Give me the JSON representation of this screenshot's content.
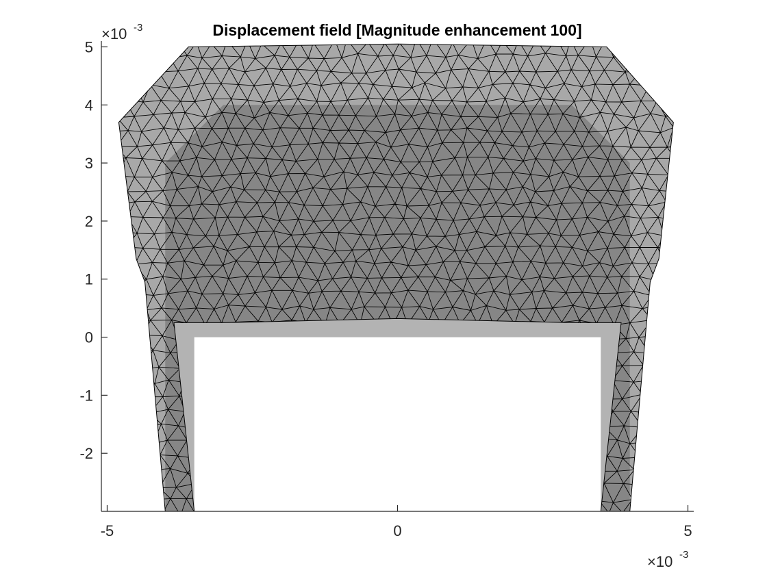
{
  "chart_data": {
    "type": "mesh-displacement",
    "title": "Displacement field [Magnitude enhancement 100]",
    "xlabel": "",
    "ylabel": "",
    "x_exponent": {
      "base": "×10",
      "power": "-3"
    },
    "y_exponent": {
      "base": "×10",
      "power": "-3"
    },
    "xlim": [
      -5.1,
      5.1
    ],
    "ylim": [
      -3.0,
      5.1
    ],
    "xticks": [
      -5,
      0,
      5
    ],
    "xtick_labels": [
      "-5",
      "0",
      "5"
    ],
    "yticks": [
      -2,
      -1,
      0,
      1,
      2,
      3,
      4,
      5
    ],
    "ytick_labels": [
      "-2",
      "-1",
      "0",
      "1",
      "2",
      "3",
      "4",
      "5"
    ],
    "grid": false,
    "colors": {
      "undeformed_fill": "#b3b3b3",
      "deformed_fill": "rgba(96,96,96,0.55)",
      "mesh_edge": "#000000",
      "axis": "#262626"
    },
    "undeformed_shape": {
      "name": "undeformed",
      "points": [
        [
          -4,
          -3
        ],
        [
          -4,
          3
        ],
        [
          -3,
          4
        ],
        [
          3,
          4
        ],
        [
          4,
          3
        ],
        [
          4,
          -3
        ],
        [
          3.5,
          -3
        ],
        [
          3.5,
          0
        ],
        [
          -3.5,
          0
        ],
        [
          -3.5,
          -3
        ]
      ]
    },
    "deformed_shape": {
      "name": "deformed",
      "points": [
        [
          -4.0,
          -3.0
        ],
        [
          -4.35,
          0.95
        ],
        [
          -4.5,
          1.35
        ],
        [
          -4.8,
          3.7
        ],
        [
          -3.6,
          5.0
        ],
        [
          0,
          5.05
        ],
        [
          3.6,
          5.0
        ],
        [
          4.75,
          3.7
        ],
        [
          4.5,
          1.35
        ],
        [
          4.35,
          0.95
        ],
        [
          4.0,
          -3.0
        ],
        [
          3.5,
          -3.0
        ],
        [
          3.85,
          0.25
        ],
        [
          3.0,
          0.25
        ],
        [
          0,
          0.32
        ],
        [
          -3.0,
          0.25
        ],
        [
          -3.85,
          0.25
        ],
        [
          -3.5,
          -3.0
        ]
      ]
    }
  }
}
